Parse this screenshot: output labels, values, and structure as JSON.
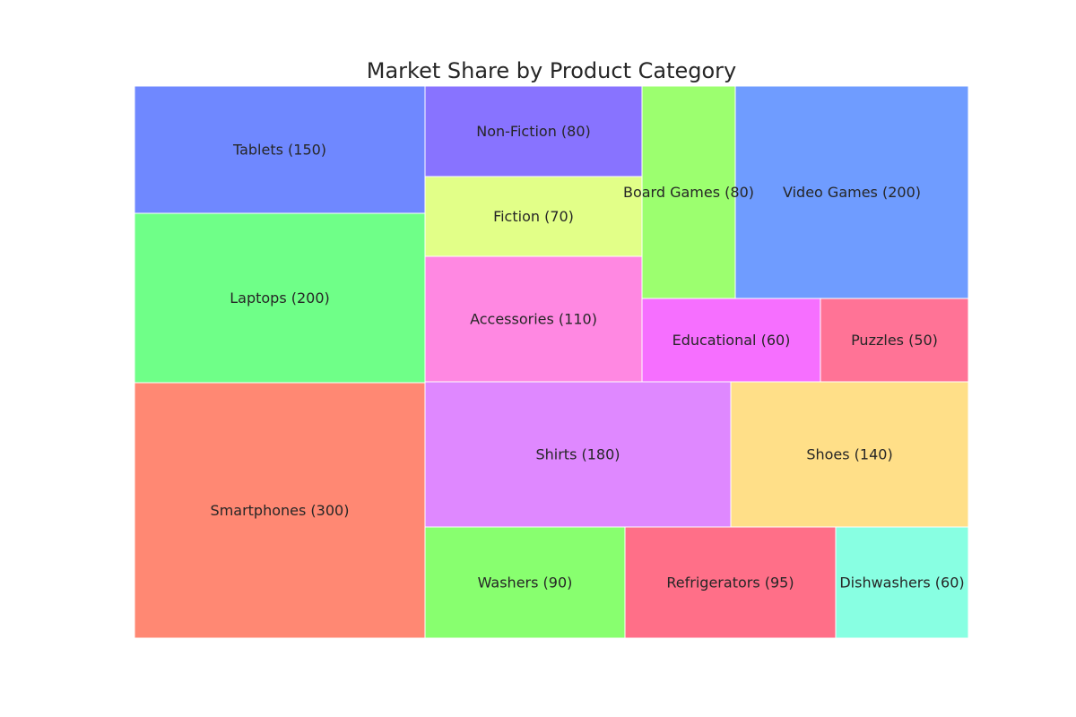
{
  "chart_data": {
    "type": "treemap",
    "title": "Market Share by Product Category",
    "items": [
      {
        "label": "Tablets (150)",
        "value": 150,
        "color": "#6f88ff"
      },
      {
        "label": "Laptops (200)",
        "value": 200,
        "color": "#6fff88"
      },
      {
        "label": "Smartphones (300)",
        "value": 300,
        "color": "#ff8873"
      },
      {
        "label": "Non-Fiction (80)",
        "value": 80,
        "color": "#8873ff"
      },
      {
        "label": "Fiction (70)",
        "value": 70,
        "color": "#e2ff88"
      },
      {
        "label": "Accessories (110)",
        "value": 110,
        "color": "#ff88e2"
      },
      {
        "label": "Board Games (80)",
        "value": 80,
        "color": "#9cff6f"
      },
      {
        "label": "Video Games (200)",
        "value": 200,
        "color": "#6f9cff"
      },
      {
        "label": "Educational (60)",
        "value": 60,
        "color": "#f66fff"
      },
      {
        "label": "Puzzles (50)",
        "value": 50,
        "color": "#ff7396"
      },
      {
        "label": "Shirts (180)",
        "value": 180,
        "color": "#df88ff"
      },
      {
        "label": "Shoes (140)",
        "value": 140,
        "color": "#ffdf88"
      },
      {
        "label": "Washers (90)",
        "value": 90,
        "color": "#88ff6f"
      },
      {
        "label": "Refrigerators (95)",
        "value": 95,
        "color": "#ff6f88"
      },
      {
        "label": "Dishwashers (60)",
        "value": 60,
        "color": "#88ffe2"
      }
    ]
  }
}
